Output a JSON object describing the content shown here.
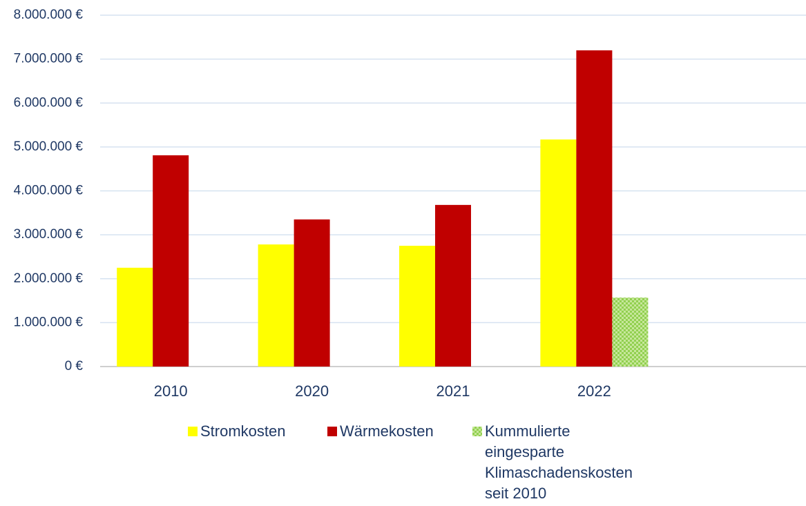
{
  "chart_data": {
    "type": "bar",
    "categories": [
      "2010",
      "2020",
      "2021",
      "2022",
      null
    ],
    "series": [
      {
        "name": "Stromkosten",
        "color": "#ffff00",
        "values": [
          2250000,
          2780000,
          2750000,
          5170000,
          null
        ]
      },
      {
        "name": "Wärmekosten",
        "color": "#c00000",
        "values": [
          4810000,
          3350000,
          3680000,
          7200000,
          null
        ]
      },
      {
        "name": "Kummulierte eingesparte Klimaschadenskosten seit 2010",
        "color": "#92d050",
        "fill_pattern": "checkered",
        "values": [
          null,
          null,
          null,
          1570000,
          null
        ]
      }
    ],
    "ylim": [
      0,
      8000000
    ],
    "yticks": [
      {
        "value": 0,
        "label": "0 €"
      },
      {
        "value": 1000000,
        "label": "1.000.000 €"
      },
      {
        "value": 2000000,
        "label": "2.000.000 €"
      },
      {
        "value": 3000000,
        "label": "3.000.000 €"
      },
      {
        "value": 4000000,
        "label": "4.000.000 €"
      },
      {
        "value": 5000000,
        "label": "5.000.000 €"
      },
      {
        "value": 6000000,
        "label": "6.000.000 €"
      },
      {
        "value": 7000000,
        "label": "7.000.000 €"
      },
      {
        "value": 8000000,
        "label": "8.000.000 €"
      }
    ],
    "grid": true,
    "legend": "bottom"
  }
}
